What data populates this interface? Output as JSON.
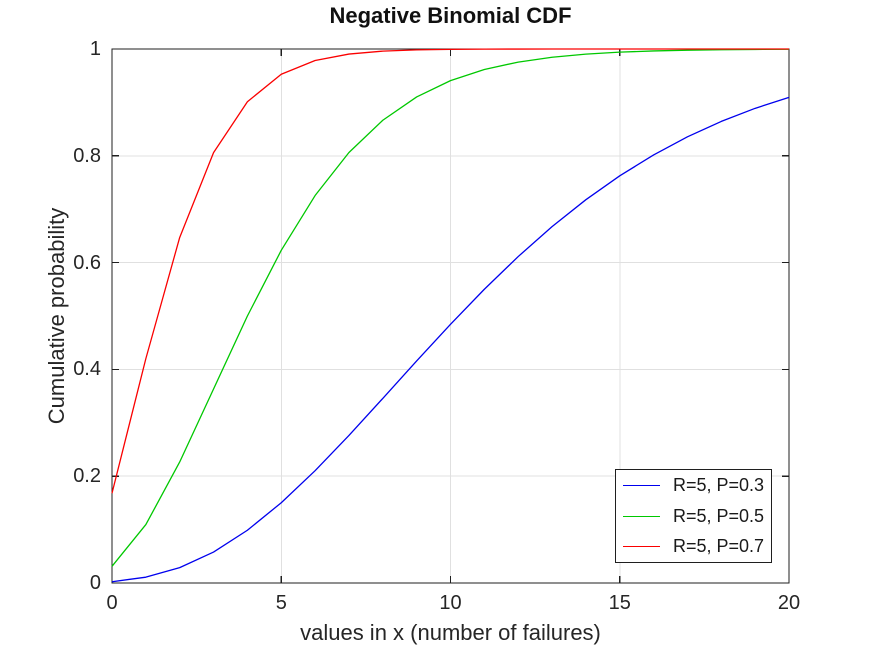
{
  "figure": {
    "background": "#ffffff"
  },
  "chart_data": {
    "type": "line",
    "title": "Negative Binomial CDF",
    "xlabel": "values in x (number of failures)",
    "ylabel": "Cumulative probability",
    "xlim": [
      0,
      20
    ],
    "ylim": [
      0,
      1
    ],
    "grid": true,
    "legend_position": "southeast",
    "x": [
      0,
      1,
      2,
      3,
      4,
      5,
      6,
      7,
      8,
      9,
      10,
      11,
      12,
      13,
      14,
      15,
      16,
      17,
      18,
      19,
      20
    ],
    "series": [
      {
        "name": "R=5, P=0.3",
        "color": "#0000ee",
        "values": [
          0.0024,
          0.0109,
          0.0288,
          0.058,
          0.0988,
          0.1503,
          0.2103,
          0.2763,
          0.3457,
          0.4158,
          0.4845,
          0.5501,
          0.6113,
          0.6673,
          0.7178,
          0.7625,
          0.8016,
          0.8355,
          0.8644,
          0.8889,
          0.9095
        ]
      },
      {
        "name": "R=5, P=0.5",
        "color": "#00c800",
        "values": [
          0.0313,
          0.1094,
          0.2266,
          0.3633,
          0.5,
          0.623,
          0.7256,
          0.8062,
          0.8666,
          0.9102,
          0.9408,
          0.9616,
          0.9755,
          0.9846,
          0.9904,
          0.9941,
          0.9964,
          0.9978,
          0.9987,
          0.9992,
          0.9995
        ]
      },
      {
        "name": "R=5, P=0.7",
        "color": "#fa0000",
        "values": [
          0.1681,
          0.4202,
          0.6471,
          0.8059,
          0.9012,
          0.9527,
          0.9784,
          0.9905,
          0.996,
          0.9983,
          0.9993,
          0.9997,
          0.9999,
          1.0,
          1.0,
          1.0,
          1.0,
          1.0,
          1.0,
          1.0,
          1.0
        ]
      }
    ],
    "xticks": {
      "values": [
        0,
        5,
        10,
        15,
        20
      ],
      "labels": [
        "0",
        "5",
        "10",
        "15",
        "20"
      ]
    },
    "yticks": {
      "values": [
        0,
        0.2,
        0.4,
        0.6,
        0.8,
        1
      ],
      "labels": [
        "0",
        "0.2",
        "0.4",
        "0.6",
        "0.8",
        "1"
      ]
    },
    "colors": {
      "grid": "#e0e0e0",
      "axis": "#1f1f1f",
      "tick_text": "#262626",
      "background": "#ffffff"
    }
  }
}
